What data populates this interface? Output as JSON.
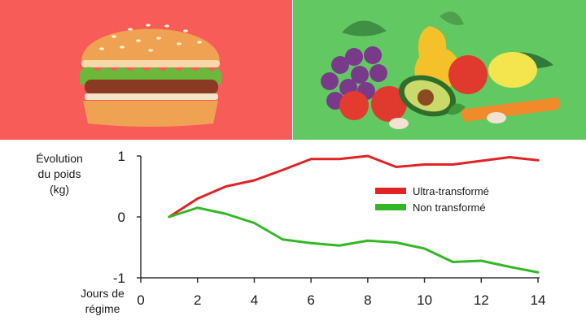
{
  "images": {
    "left_icon": "burger-illustration",
    "right_icon": "fruits-vegetables-illustration",
    "left_bg": "#f75c58",
    "right_bg": "#62c962"
  },
  "chart_data": {
    "type": "line",
    "ylabel_lines": [
      "Évolution",
      "du poids",
      "(kg)"
    ],
    "xlabel_lines": [
      "Jours de",
      "régime"
    ],
    "xlim": [
      0,
      14
    ],
    "ylim": [
      -1,
      1
    ],
    "xticks": [
      0,
      2,
      4,
      6,
      8,
      10,
      12,
      14
    ],
    "yticks": [
      1,
      0,
      -1
    ],
    "grid": false,
    "legend_position": "right",
    "series": [
      {
        "name": "Ultra-transformé",
        "color": "#e02323",
        "x": [
          1,
          2,
          3,
          4,
          5,
          6,
          7,
          8,
          9,
          10,
          11,
          12,
          13,
          14
        ],
        "y": [
          0,
          0.3,
          0.5,
          0.6,
          0.77,
          0.95,
          0.95,
          1.0,
          0.82,
          0.86,
          0.86,
          0.92,
          0.98,
          0.93
        ]
      },
      {
        "name": "Non transformé",
        "color": "#33b825",
        "x": [
          1,
          2,
          3,
          4,
          5,
          6,
          7,
          8,
          9,
          10,
          11,
          12,
          13,
          14
        ],
        "y": [
          0,
          0.15,
          0.05,
          -0.1,
          -0.37,
          -0.43,
          -0.47,
          -0.39,
          -0.42,
          -0.52,
          -0.74,
          -0.72,
          -0.82,
          -0.91
        ]
      }
    ]
  }
}
